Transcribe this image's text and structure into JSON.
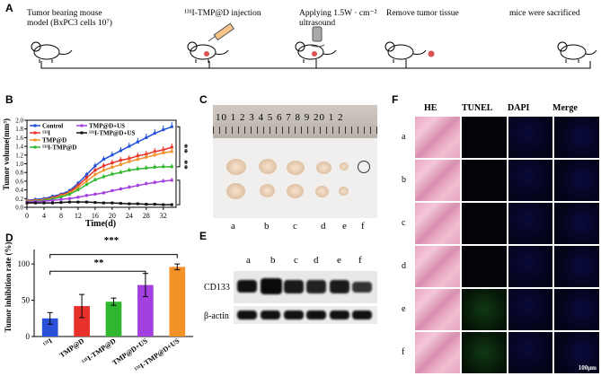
{
  "panelA": {
    "letter": "A",
    "steps": [
      {
        "line1": "Tumor bearing mouse",
        "line2": "model (BxPC3 cells 10⁷)"
      },
      {
        "line1": "¹³¹I-TMP@D injection",
        "line2": ""
      },
      {
        "line1": "Applying 1.5W · cm⁻²",
        "line2": "ultrasound"
      },
      {
        "line1": "Remove tumor tissue",
        "line2": ""
      },
      {
        "line1": "mice were sacrificed",
        "line2": ""
      }
    ]
  },
  "panelB": {
    "letter": "B",
    "sig1": "**",
    "sig2": "**"
  },
  "panelC": {
    "letter": "C",
    "ruler_text": "10 1 2 3 4 5 6 7 8 9 20 1 2",
    "groups": [
      "a",
      "b",
      "c",
      "d",
      "e",
      "f"
    ]
  },
  "panelD": {
    "letter": "D",
    "sig_top": "***",
    "sig_mid": "**"
  },
  "panelE": {
    "letter": "E",
    "lanes": [
      "a",
      "b",
      "c",
      "d",
      "e",
      "f"
    ],
    "bands": [
      "CD133",
      "β-actin"
    ]
  },
  "panelF": {
    "letter": "F",
    "columns": [
      "HE",
      "TUNEL",
      "DAPI",
      "Merge"
    ],
    "rows": [
      "a",
      "b",
      "c",
      "d",
      "e",
      "f"
    ],
    "scale": "100μm"
  },
  "chart_data": [
    {
      "type": "line",
      "xlabel": "Time(d)",
      "ylabel": "Tumor volume(mm³)",
      "xlim": [
        0,
        35
      ],
      "ylim": [
        0,
        2.0
      ],
      "x_ticks": [
        "0",
        "4",
        "8",
        "12",
        "16",
        "20",
        "24",
        "28",
        "32"
      ],
      "y_ticks": [
        "0.0",
        "0.2",
        "0.4",
        "0.6",
        "0.8",
        "1.0",
        "1.2",
        "1.4",
        "1.6",
        "1.8",
        "2.0"
      ],
      "legend": "top-left",
      "x": [
        0,
        2,
        4,
        6,
        8,
        10,
        12,
        14,
        16,
        18,
        20,
        22,
        24,
        26,
        28,
        30,
        32,
        34
      ],
      "series": [
        {
          "name": "Control",
          "color": "#1f4fd8",
          "values": [
            0.16,
            0.18,
            0.2,
            0.25,
            0.3,
            0.38,
            0.55,
            0.75,
            0.95,
            1.1,
            1.2,
            1.3,
            1.4,
            1.5,
            1.6,
            1.7,
            1.78,
            1.85
          ]
        },
        {
          "name": "¹³¹I",
          "color": "#e8312a",
          "values": [
            0.15,
            0.16,
            0.18,
            0.22,
            0.28,
            0.35,
            0.5,
            0.68,
            0.85,
            0.95,
            1.02,
            1.08,
            1.12,
            1.18,
            1.22,
            1.28,
            1.32,
            1.38
          ]
        },
        {
          "name": "TMP@D",
          "color": "#f4922a",
          "values": [
            0.14,
            0.15,
            0.17,
            0.2,
            0.26,
            0.33,
            0.45,
            0.6,
            0.75,
            0.85,
            0.92,
            0.98,
            1.05,
            1.1,
            1.15,
            1.2,
            1.25,
            1.28
          ]
        },
        {
          "name": "¹³¹I-TMP@D",
          "color": "#2fb82f",
          "values": [
            0.13,
            0.14,
            0.16,
            0.19,
            0.24,
            0.3,
            0.4,
            0.52,
            0.63,
            0.7,
            0.76,
            0.8,
            0.85,
            0.88,
            0.9,
            0.92,
            0.93,
            0.93
          ]
        },
        {
          "name": "TMP@D+US",
          "color": "#a43fe0",
          "values": [
            0.12,
            0.13,
            0.14,
            0.16,
            0.18,
            0.2,
            0.23,
            0.27,
            0.3,
            0.33,
            0.38,
            0.42,
            0.46,
            0.5,
            0.54,
            0.57,
            0.6,
            0.62
          ]
        },
        {
          "name": "¹³¹I-TMP@D+US",
          "color": "#111111",
          "values": [
            0.1,
            0.1,
            0.1,
            0.1,
            0.11,
            0.12,
            0.12,
            0.12,
            0.11,
            0.1,
            0.1,
            0.09,
            0.08,
            0.08,
            0.07,
            0.07,
            0.06,
            0.06
          ]
        }
      ]
    },
    {
      "type": "bar",
      "ylabel": "Tumor inhibition rate (%)",
      "ylim": [
        0,
        120
      ],
      "y_ticks": [
        "0",
        "50",
        "100"
      ],
      "categories": [
        "¹³¹I",
        "TMP@D",
        "¹³¹I-TMP@D",
        "TMP@D+US",
        "¹³¹I-TMP@D+US"
      ],
      "values": [
        25,
        42,
        48,
        71,
        96
      ],
      "errors": [
        8,
        16,
        5,
        16,
        4
      ],
      "colors": [
        "#2a4fd8",
        "#e8312a",
        "#2fb82f",
        "#a43fe0",
        "#f4922a"
      ]
    }
  ]
}
